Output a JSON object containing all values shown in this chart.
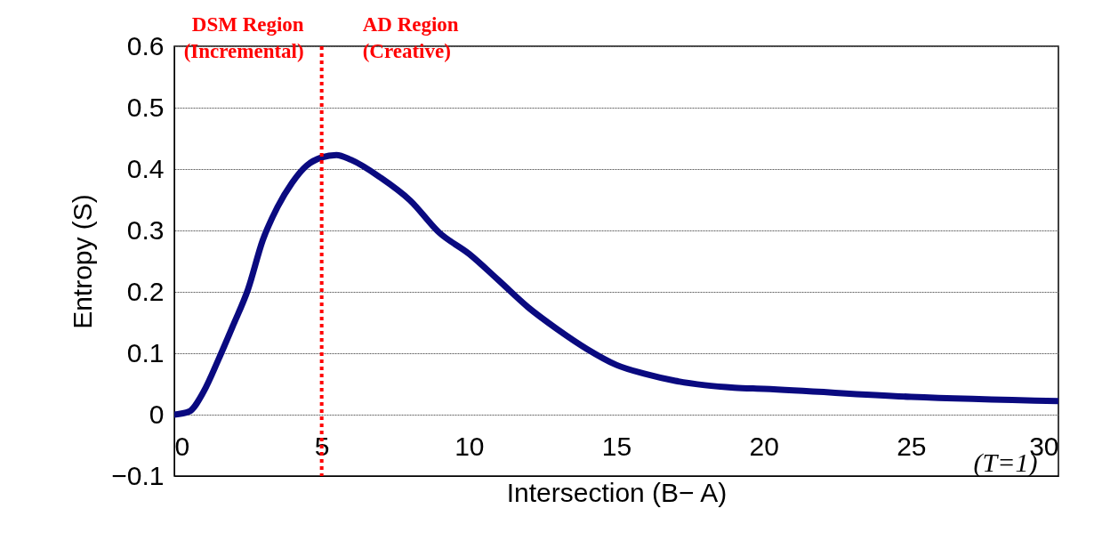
{
  "chart_data": {
    "type": "line",
    "xlabel": "Intersection (B− A)",
    "ylabel": "Entropy (S)",
    "x": [
      0,
      0.5,
      1,
      1.5,
      2,
      2.5,
      3,
      3.5,
      4,
      4.5,
      5,
      5.5,
      6,
      7,
      8,
      9,
      10,
      11,
      12,
      13,
      14,
      15,
      16,
      17,
      18,
      19,
      20,
      25,
      30
    ],
    "series": [
      {
        "color": "#0a0a80",
        "values": [
          0,
          0.005,
          0.038,
          0.09,
          0.146,
          0.204,
          0.284,
          0.338,
          0.378,
          0.406,
          0.419,
          0.423,
          0.415,
          0.386,
          0.349,
          0.296,
          0.262,
          0.219,
          0.175,
          0.139,
          0.107,
          0.081,
          0.066,
          0.055,
          0.048,
          0.044,
          0.042,
          0.029,
          0.022
        ]
      }
    ],
    "xlim": [
      0,
      30
    ],
    "xticks": [
      0,
      5,
      10,
      15,
      20,
      25,
      30
    ],
    "ylim": [
      -0.1,
      0.6
    ],
    "yticks": [
      -0.1,
      0,
      0.1,
      0.2,
      0.3,
      0.4,
      0.5,
      0.6
    ],
    "grid": "y",
    "marker": "none",
    "line_style": "solid",
    "ref_lines": [
      {
        "axis": "x",
        "value": 5,
        "color": "#ff0000",
        "line_style": "dotted"
      }
    ],
    "annotations": [
      "DSM Region\n(Incremental)",
      "AD Region\n(Creative)",
      "(T=1)"
    ]
  }
}
